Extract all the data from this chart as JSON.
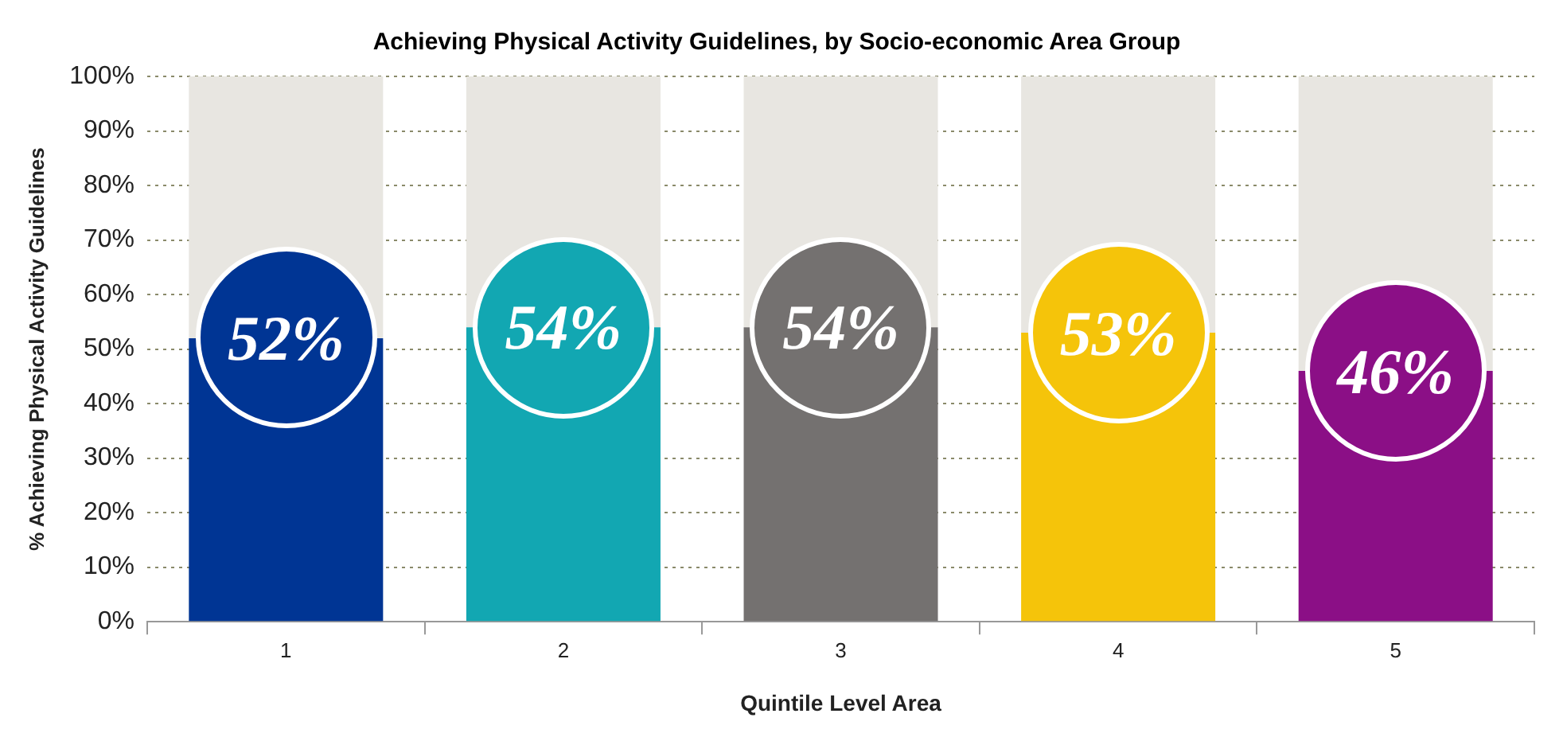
{
  "chart_data": {
    "type": "bar",
    "title": "Achieving Physical Activity Guidelines, by Socio-economic Area Group",
    "xlabel": "Quintile Level Area",
    "ylabel": "% Achieving Physical Activity Guidelines",
    "categories": [
      "1",
      "2",
      "3",
      "4",
      "5"
    ],
    "stacked": true,
    "series": [
      {
        "colors": [
          "#003594",
          "#12a7b2",
          "#747170",
          "#f5c40a",
          "#8b0f86"
        ],
        "values": [
          52,
          54,
          54,
          53,
          46
        ],
        "value_labels": [
          "52%",
          "54%",
          "54%",
          "53%",
          "46%"
        ]
      },
      {
        "color": "#e8e6e1",
        "values": [
          48,
          46,
          46,
          47,
          54
        ]
      }
    ],
    "ylim": [
      0,
      100
    ],
    "yticks": [
      {
        "value": 0,
        "label": "0%"
      },
      {
        "value": 10,
        "label": "10%"
      },
      {
        "value": 20,
        "label": "20%"
      },
      {
        "value": 30,
        "label": "30%"
      },
      {
        "value": 40,
        "label": "40%"
      },
      {
        "value": 50,
        "label": "50%"
      },
      {
        "value": 60,
        "label": "60%"
      },
      {
        "value": 70,
        "label": "70%"
      },
      {
        "value": 80,
        "label": "80%"
      },
      {
        "value": 90,
        "label": "90%"
      },
      {
        "value": 100,
        "label": "100%"
      }
    ],
    "grid": "y",
    "legend": false
  }
}
